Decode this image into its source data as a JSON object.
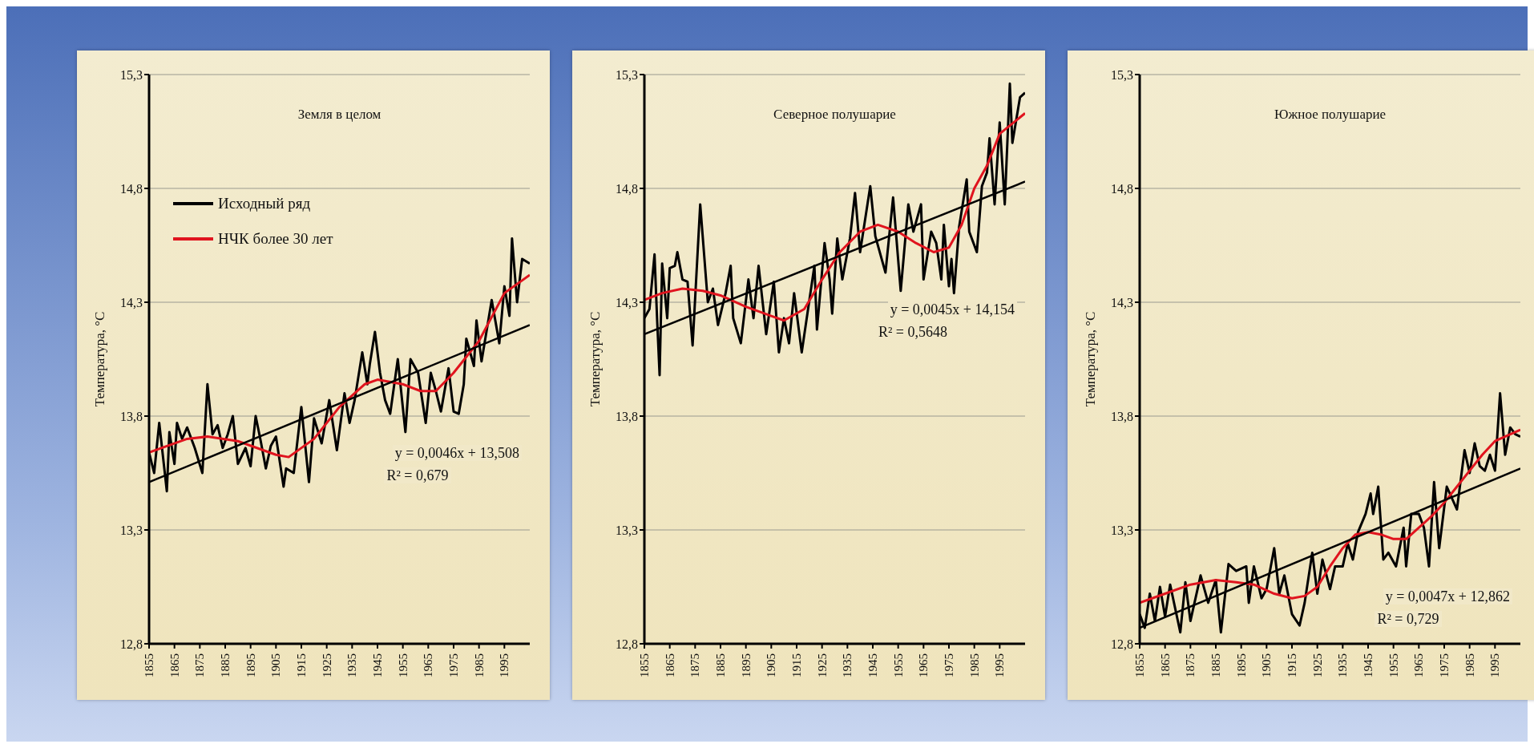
{
  "chart_data": [
    {
      "type": "line",
      "title": "Земля в целом",
      "ylabel": "Температура, °С",
      "xlim": [
        1855,
        2005
      ],
      "xticks": [
        1855,
        1865,
        1875,
        1885,
        1895,
        1905,
        1915,
        1925,
        1935,
        1945,
        1955,
        1965,
        1975,
        1985,
        1995
      ],
      "ylim": [
        12.8,
        15.3
      ],
      "yticks": [
        {
          "value": 12.8,
          "label": "12,8"
        },
        {
          "value": 13.3,
          "label": "13,3"
        },
        {
          "value": 13.8,
          "label": "13,8"
        },
        {
          "value": 14.3,
          "label": "14,3"
        },
        {
          "value": 14.8,
          "label": "14,8"
        },
        {
          "value": 15.3,
          "label": "15,3"
        }
      ],
      "grid": "y",
      "legend": "top left",
      "line_style": "solid",
      "annotations": [
        "y = 0,0046x + 13,508",
        "R² = 0,679"
      ],
      "series": [
        {
          "name": "Исходный ряд",
          "color": "#000000",
          "x": [
            1855,
            1857,
            1859,
            1862,
            1863,
            1865,
            1866,
            1868,
            1870,
            1873,
            1876,
            1878,
            1880,
            1882,
            1884,
            1886,
            1888,
            1890,
            1893,
            1895,
            1897,
            1899,
            1901,
            1903,
            1905,
            1908,
            1909,
            1912,
            1915,
            1918,
            1920,
            1923,
            1926,
            1929,
            1932,
            1934,
            1936,
            1939,
            1941,
            1942,
            1944,
            1946,
            1948,
            1950,
            1953,
            1956,
            1958,
            1961,
            1964,
            1966,
            1968,
            1970,
            1973,
            1975,
            1977,
            1979,
            1980,
            1983,
            1984,
            1986,
            1990,
            1993,
            1995,
            1997,
            1998,
            2000,
            2002,
            2005
          ],
          "values": [
            13.64,
            13.55,
            13.77,
            13.47,
            13.73,
            13.59,
            13.77,
            13.7,
            13.75,
            13.66,
            13.55,
            13.94,
            13.72,
            13.76,
            13.66,
            13.72,
            13.8,
            13.59,
            13.66,
            13.58,
            13.8,
            13.69,
            13.57,
            13.67,
            13.71,
            13.49,
            13.57,
            13.55,
            13.84,
            13.51,
            13.79,
            13.68,
            13.87,
            13.65,
            13.9,
            13.77,
            13.87,
            14.08,
            13.94,
            14.03,
            14.17,
            13.99,
            13.87,
            13.81,
            14.05,
            13.73,
            14.05,
            13.99,
            13.77,
            13.99,
            13.91,
            13.82,
            14.01,
            13.82,
            13.81,
            13.94,
            14.14,
            14.02,
            14.22,
            14.04,
            14.31,
            14.12,
            14.37,
            14.24,
            14.58,
            14.3,
            14.49,
            14.47
          ]
        },
        {
          "name": "НЧК более 30 лет",
          "color": "#e0141e",
          "x": [
            1855,
            1870,
            1878,
            1890,
            1905,
            1910,
            1920,
            1930,
            1940,
            1945,
            1955,
            1962,
            1968,
            1975,
            1985,
            1995,
            2005
          ],
          "values": [
            13.64,
            13.7,
            13.71,
            13.69,
            13.63,
            13.62,
            13.7,
            13.84,
            13.94,
            13.96,
            13.94,
            13.91,
            13.91,
            13.99,
            14.13,
            14.34,
            14.42
          ]
        },
        {
          "type": "line",
          "color": "#000000",
          "x": [
            1855,
            2005
          ],
          "values": [
            13.51,
            14.2
          ]
        }
      ]
    },
    {
      "type": "line",
      "title": "Северное полушарие",
      "ylabel": "Температура, °С",
      "xlim": [
        1855,
        2005
      ],
      "xticks": [
        1855,
        1865,
        1875,
        1885,
        1895,
        1905,
        1915,
        1925,
        1935,
        1945,
        1955,
        1965,
        1975,
        1985,
        1995
      ],
      "ylim": [
        12.8,
        15.3
      ],
      "yticks": [
        {
          "value": 12.8,
          "label": "12,8"
        },
        {
          "value": 13.3,
          "label": "13,3"
        },
        {
          "value": 13.8,
          "label": "13,8"
        },
        {
          "value": 14.3,
          "label": "14,3"
        },
        {
          "value": 14.8,
          "label": "14,8"
        },
        {
          "value": 15.3,
          "label": "15,3"
        }
      ],
      "grid": "y",
      "line_style": "solid",
      "annotations": [
        "y = 0,0045x + 14,154",
        "R² = 0,5648"
      ],
      "series": [
        {
          "color": "#000000",
          "x": [
            1855,
            1857,
            1859,
            1860,
            1861,
            1862,
            1864,
            1865,
            1867,
            1868,
            1870,
            1872,
            1874,
            1877,
            1880,
            1882,
            1884,
            1887,
            1889,
            1890,
            1893,
            1896,
            1898,
            1900,
            1903,
            1906,
            1908,
            1910,
            1912,
            1914,
            1917,
            1922,
            1923,
            1926,
            1928,
            1929,
            1931,
            1933,
            1936,
            1938,
            1940,
            1944,
            1946,
            1950,
            1953,
            1956,
            1959,
            1961,
            1964,
            1965,
            1968,
            1970,
            1972,
            1973,
            1975,
            1976,
            1977,
            1979,
            1982,
            1983,
            1986,
            1988,
            1990,
            1991,
            1993,
            1995,
            1997,
            1999,
            2000,
            2003,
            2005
          ],
          "values": [
            14.23,
            14.27,
            14.51,
            14.23,
            13.98,
            14.47,
            14.23,
            14.45,
            14.46,
            14.52,
            14.4,
            14.39,
            14.11,
            14.73,
            14.3,
            14.36,
            14.2,
            14.34,
            14.46,
            14.23,
            14.12,
            14.4,
            14.23,
            14.46,
            14.16,
            14.39,
            14.08,
            14.23,
            14.12,
            14.34,
            14.08,
            14.46,
            14.18,
            14.56,
            14.4,
            14.25,
            14.58,
            14.4,
            14.58,
            14.78,
            14.52,
            14.81,
            14.59,
            14.43,
            14.76,
            14.35,
            14.73,
            14.61,
            14.73,
            14.4,
            14.61,
            14.56,
            14.4,
            14.64,
            14.37,
            14.49,
            14.34,
            14.63,
            14.84,
            14.61,
            14.52,
            14.81,
            14.87,
            15.02,
            14.73,
            15.09,
            14.73,
            15.26,
            15.0,
            15.2,
            15.22
          ]
        },
        {
          "color": "#e0141e",
          "x": [
            1855,
            1862,
            1870,
            1878,
            1885,
            1895,
            1905,
            1910,
            1918,
            1925,
            1932,
            1940,
            1947,
            1955,
            1962,
            1969,
            1975,
            1980,
            1985,
            1990,
            1995,
            2005
          ],
          "values": [
            14.31,
            14.34,
            14.36,
            14.35,
            14.33,
            14.28,
            14.24,
            14.22,
            14.27,
            14.4,
            14.52,
            14.61,
            14.64,
            14.61,
            14.56,
            14.52,
            14.54,
            14.64,
            14.8,
            14.9,
            15.04,
            15.13
          ]
        },
        {
          "type": "line",
          "color": "#000000",
          "x": [
            1855,
            2005
          ],
          "values": [
            14.16,
            14.83
          ]
        }
      ]
    },
    {
      "type": "line",
      "title": "Южное полушарие",
      "ylabel": "Температура, °С",
      "xlim": [
        1855,
        2005
      ],
      "xticks": [
        1855,
        1865,
        1875,
        1885,
        1895,
        1905,
        1915,
        1925,
        1935,
        1945,
        1955,
        1965,
        1975,
        1985,
        1995
      ],
      "ylim": [
        12.8,
        15.3
      ],
      "yticks": [
        {
          "value": 12.8,
          "label": "12,8"
        },
        {
          "value": 13.3,
          "label": "13,3"
        },
        {
          "value": 13.8,
          "label": "13,8"
        },
        {
          "value": 14.3,
          "label": "14,3"
        },
        {
          "value": 14.8,
          "label": "14,8"
        },
        {
          "value": 15.3,
          "label": "15,3"
        }
      ],
      "grid": "y",
      "line_style": "solid",
      "annotations": [
        "y = 0,0047x + 12,862",
        "R² = 0,729"
      ],
      "series": [
        {
          "color": "#000000",
          "x": [
            1855,
            1857,
            1859,
            1861,
            1863,
            1865,
            1867,
            1871,
            1873,
            1875,
            1879,
            1882,
            1885,
            1887,
            1890,
            1893,
            1897,
            1898,
            1900,
            1903,
            1905,
            1908,
            1910,
            1912,
            1915,
            1918,
            1920,
            1923,
            1925,
            1927,
            1930,
            1932,
            1935,
            1937,
            1939,
            1941,
            1944,
            1946,
            1947,
            1949,
            1951,
            1953,
            1956,
            1959,
            1960,
            1962,
            1965,
            1967,
            1969,
            1971,
            1973,
            1976,
            1978,
            1980,
            1983,
            1985,
            1987,
            1989,
            1991,
            1993,
            1995,
            1997,
            1999,
            2001,
            2003,
            2005
          ],
          "values": [
            12.93,
            12.87,
            13.02,
            12.9,
            13.05,
            12.92,
            13.06,
            12.85,
            13.07,
            12.9,
            13.1,
            12.98,
            13.08,
            12.85,
            13.15,
            13.12,
            13.14,
            12.98,
            13.14,
            13.0,
            13.04,
            13.22,
            13.02,
            13.1,
            12.93,
            12.88,
            12.98,
            13.2,
            13.02,
            13.17,
            13.04,
            13.14,
            13.14,
            13.24,
            13.17,
            13.29,
            13.37,
            13.46,
            13.37,
            13.49,
            13.17,
            13.2,
            13.14,
            13.31,
            13.14,
            13.37,
            13.37,
            13.31,
            13.14,
            13.51,
            13.22,
            13.49,
            13.44,
            13.39,
            13.65,
            13.55,
            13.68,
            13.58,
            13.56,
            13.63,
            13.56,
            13.9,
            13.63,
            13.75,
            13.72,
            13.71
          ]
        },
        {
          "color": "#e0141e",
          "x": [
            1855,
            1865,
            1875,
            1885,
            1893,
            1900,
            1908,
            1915,
            1920,
            1925,
            1930,
            1935,
            1940,
            1945,
            1950,
            1955,
            1960,
            1965,
            1970,
            1975,
            1980,
            1985,
            1990,
            1995,
            2005
          ],
          "values": [
            12.98,
            13.02,
            13.06,
            13.08,
            13.07,
            13.06,
            13.02,
            13.0,
            13.01,
            13.05,
            13.14,
            13.22,
            13.28,
            13.29,
            13.28,
            13.26,
            13.26,
            13.31,
            13.36,
            13.42,
            13.49,
            13.56,
            13.63,
            13.69,
            13.74
          ]
        },
        {
          "type": "line",
          "color": "#000000",
          "x": [
            1855,
            2005
          ],
          "values": [
            12.87,
            13.57
          ]
        }
      ]
    }
  ]
}
